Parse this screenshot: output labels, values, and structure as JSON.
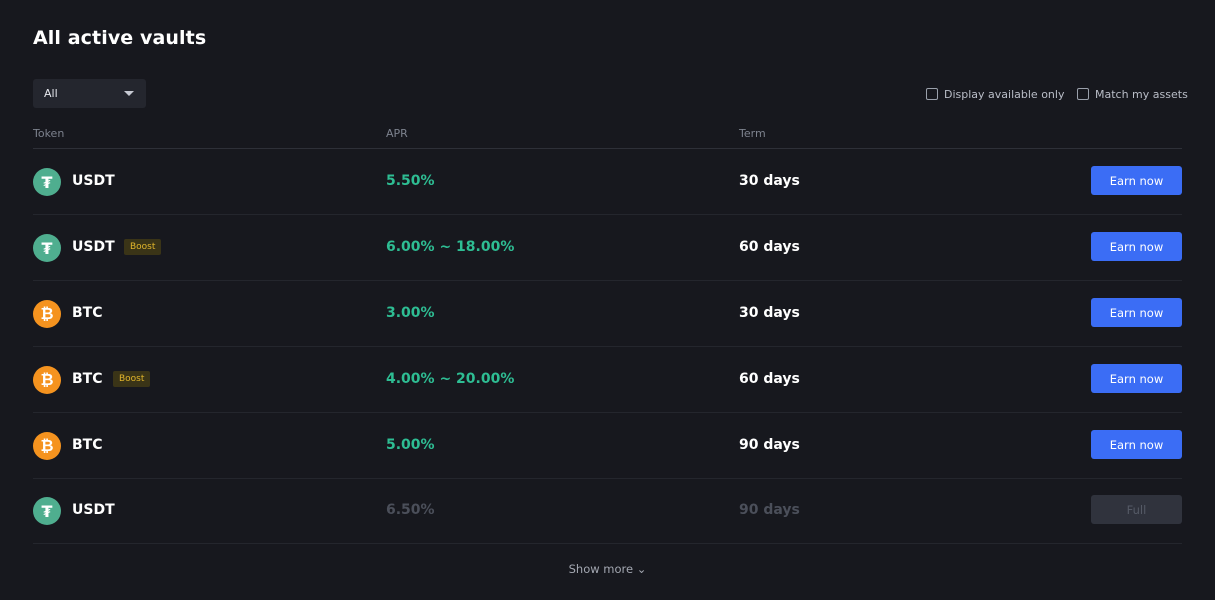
{
  "title": "All active vaults",
  "filter": {
    "value": "All"
  },
  "options": {
    "display_available": "Display available only",
    "match_assets": "Match my assets"
  },
  "headers": {
    "token": "Token",
    "apr": "APR",
    "term": "Term"
  },
  "rows": [
    {
      "token": "USDT",
      "icon": "usdt-icon",
      "boost": "",
      "apr": "5.50%",
      "term": "30 days",
      "action": "Earn now"
    },
    {
      "token": "USDT",
      "icon": "usdt-icon",
      "boost": "Boost",
      "apr": "6.00% ~ 18.00%",
      "term": "60 days",
      "action": "Earn now"
    },
    {
      "token": "BTC",
      "icon": "btc-icon",
      "boost": "",
      "apr": "3.00%",
      "term": "30 days",
      "action": "Earn now"
    },
    {
      "token": "BTC",
      "icon": "btc-icon",
      "boost": "Boost",
      "apr": "4.00% ~ 20.00%",
      "term": "60 days",
      "action": "Earn now"
    },
    {
      "token": "BTC",
      "icon": "btc-icon",
      "boost": "",
      "apr": "5.00%",
      "term": "90 days",
      "action": "Earn now"
    },
    {
      "token": "USDT",
      "icon": "usdt-icon",
      "boost": "",
      "apr": "6.50%",
      "term": "90 days",
      "action": "Full"
    }
  ],
  "show_more": "Show more ⌄",
  "colors": {
    "background": "#17181e",
    "accent": "#3b6df5",
    "apr_green": "#2ebd93",
    "boost_text": "#e1b52b",
    "usdt": "#4fae8f",
    "btc": "#f5931f"
  }
}
